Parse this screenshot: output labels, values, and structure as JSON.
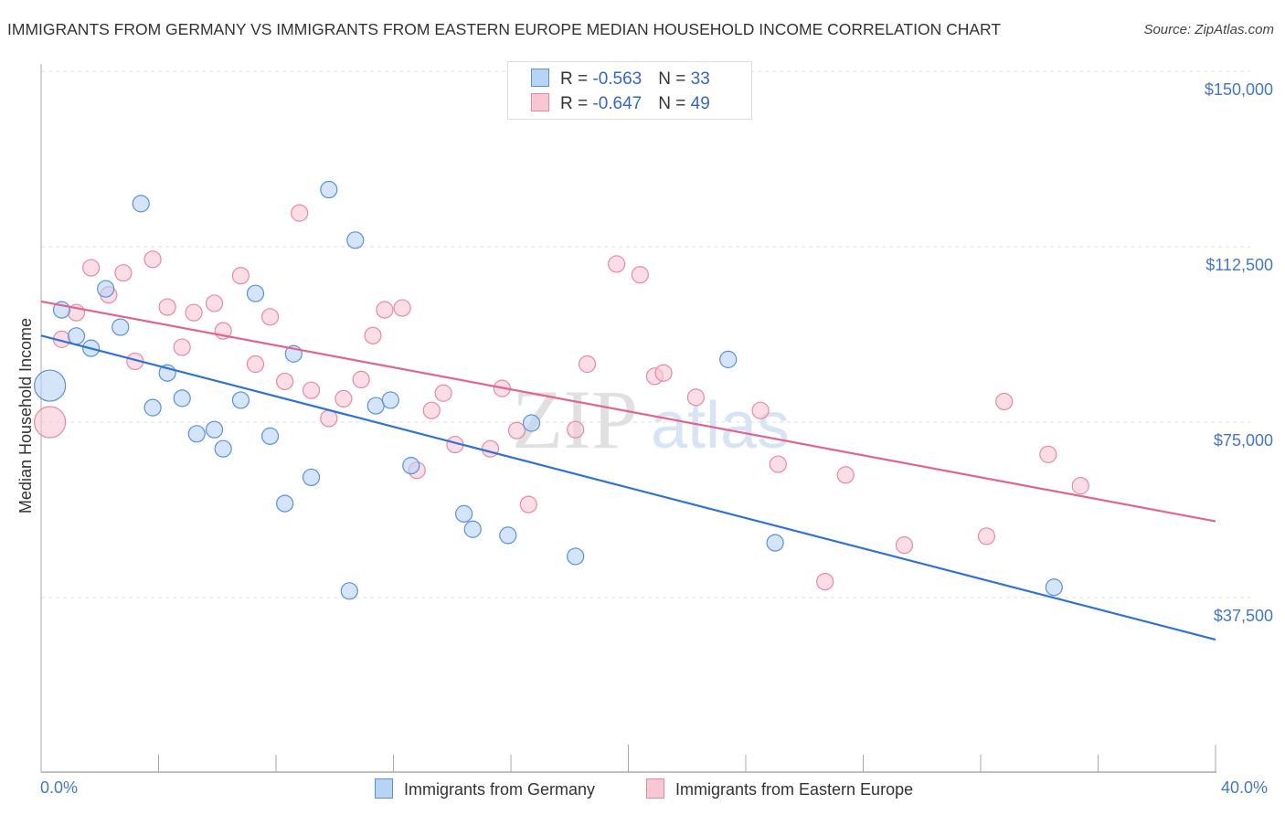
{
  "header": {
    "title": "IMMIGRANTS FROM GERMANY VS IMMIGRANTS FROM EASTERN EUROPE MEDIAN HOUSEHOLD INCOME CORRELATION CHART",
    "source": "Source: ZipAtlas.com"
  },
  "legend": {
    "rows": [
      {
        "r_label": "R = ",
        "r_value": "-0.563",
        "n_label": "N = ",
        "n_value": "33"
      },
      {
        "r_label": "R = ",
        "r_value": "-0.647",
        "n_label": "N = ",
        "n_value": "49"
      }
    ]
  },
  "watermark": {
    "zip": "ZIP",
    "atlas": "atlas"
  },
  "colors": {
    "germany_fill": "#b8d4f5",
    "germany_stroke": "#5a8fdc",
    "germany_line": "#2f72d6",
    "eeurope_fill": "#f9c6d4",
    "eeurope_stroke": "#e58aa6",
    "eeurope_line": "#e2648c",
    "tick_label": "#4477cc"
  },
  "chart_data": {
    "type": "scatter",
    "title": "IMMIGRANTS FROM GERMANY VS IMMIGRANTS FROM EASTERN EUROPE MEDIAN HOUSEHOLD INCOME CORRELATION CHART",
    "xlabel": "",
    "ylabel": "Median Household Income",
    "xlim": [
      0,
      40
    ],
    "ylim": [
      0,
      154000
    ],
    "x_tick_labels": [
      "0.0%",
      "40.0%"
    ],
    "x_ticks": [
      0,
      4,
      8,
      12,
      16,
      20,
      24,
      28,
      32,
      36,
      40
    ],
    "y_ticks": [
      37500,
      75000,
      112500,
      150000
    ],
    "y_tick_labels": [
      "$37,500",
      "$75,000",
      "$112,500",
      "$150,000"
    ],
    "grid": true,
    "legend_position": "bottom",
    "series": [
      {
        "name": "Immigrants from Germany",
        "r": -0.563,
        "n": 33,
        "trend": {
          "x": [
            0,
            40
          ],
          "y": [
            93500,
            28500
          ]
        },
        "points": [
          {
            "x": 3.4,
            "y": 121700
          },
          {
            "x": 9.8,
            "y": 124700
          },
          {
            "x": 10.7,
            "y": 113900
          },
          {
            "x": 0.7,
            "y": 99000
          },
          {
            "x": 2.2,
            "y": 103500
          },
          {
            "x": 7.3,
            "y": 102500
          },
          {
            "x": 2.7,
            "y": 95300
          },
          {
            "x": 1.2,
            "y": 93400
          },
          {
            "x": 1.7,
            "y": 90800
          },
          {
            "x": 8.6,
            "y": 89600
          },
          {
            "x": 4.3,
            "y": 85500
          },
          {
            "x": 4.8,
            "y": 80100
          },
          {
            "x": 3.8,
            "y": 78100
          },
          {
            "x": 6.8,
            "y": 79700
          },
          {
            "x": 11.4,
            "y": 78500
          },
          {
            "x": 11.9,
            "y": 79700
          },
          {
            "x": 5.3,
            "y": 72500
          },
          {
            "x": 5.9,
            "y": 73400
          },
          {
            "x": 6.2,
            "y": 69300
          },
          {
            "x": 7.8,
            "y": 72000
          },
          {
            "x": 12.6,
            "y": 65700
          },
          {
            "x": 9.2,
            "y": 63200
          },
          {
            "x": 16.7,
            "y": 74800
          },
          {
            "x": 8.3,
            "y": 57600
          },
          {
            "x": 14.4,
            "y": 55400
          },
          {
            "x": 14.7,
            "y": 52100
          },
          {
            "x": 15.9,
            "y": 50800
          },
          {
            "x": 18.2,
            "y": 46300
          },
          {
            "x": 23.4,
            "y": 88400
          },
          {
            "x": 25.0,
            "y": 49200
          },
          {
            "x": 34.5,
            "y": 39700
          },
          {
            "x": 10.5,
            "y": 38900
          },
          {
            "x": 0.3,
            "y": 82800,
            "size": "large"
          }
        ]
      },
      {
        "name": "Immigrants from Eastern Europe",
        "r": -0.647,
        "n": 49,
        "trend": {
          "x": [
            0,
            40
          ],
          "y": [
            100800,
            53800
          ]
        },
        "points": [
          {
            "x": 1.7,
            "y": 108000
          },
          {
            "x": 3.8,
            "y": 109800
          },
          {
            "x": 2.8,
            "y": 106900
          },
          {
            "x": 8.8,
            "y": 119700
          },
          {
            "x": 2.3,
            "y": 102200
          },
          {
            "x": 4.3,
            "y": 99600
          },
          {
            "x": 5.2,
            "y": 98400
          },
          {
            "x": 5.9,
            "y": 100400
          },
          {
            "x": 6.8,
            "y": 106300
          },
          {
            "x": 7.8,
            "y": 97500
          },
          {
            "x": 1.2,
            "y": 98400
          },
          {
            "x": 0.7,
            "y": 92700
          },
          {
            "x": 6.2,
            "y": 94500
          },
          {
            "x": 4.8,
            "y": 91000
          },
          {
            "x": 3.2,
            "y": 88000
          },
          {
            "x": 7.3,
            "y": 87400
          },
          {
            "x": 8.3,
            "y": 83700
          },
          {
            "x": 9.2,
            "y": 81800
          },
          {
            "x": 10.3,
            "y": 80000
          },
          {
            "x": 10.9,
            "y": 84100
          },
          {
            "x": 11.3,
            "y": 93500
          },
          {
            "x": 11.7,
            "y": 99000
          },
          {
            "x": 12.3,
            "y": 99400
          },
          {
            "x": 13.7,
            "y": 81200
          },
          {
            "x": 13.3,
            "y": 77500
          },
          {
            "x": 14.1,
            "y": 70200
          },
          {
            "x": 15.3,
            "y": 69300
          },
          {
            "x": 15.7,
            "y": 82200
          },
          {
            "x": 16.2,
            "y": 73200
          },
          {
            "x": 16.6,
            "y": 57400
          },
          {
            "x": 12.8,
            "y": 64700
          },
          {
            "x": 9.8,
            "y": 75800
          },
          {
            "x": 18.2,
            "y": 73400
          },
          {
            "x": 18.6,
            "y": 87400
          },
          {
            "x": 19.6,
            "y": 108800
          },
          {
            "x": 20.4,
            "y": 106500
          },
          {
            "x": 20.9,
            "y": 84800
          },
          {
            "x": 21.2,
            "y": 85500
          },
          {
            "x": 22.3,
            "y": 80300
          },
          {
            "x": 24.5,
            "y": 77500
          },
          {
            "x": 25.1,
            "y": 66000
          },
          {
            "x": 27.4,
            "y": 63700
          },
          {
            "x": 29.4,
            "y": 48700
          },
          {
            "x": 26.7,
            "y": 40900
          },
          {
            "x": 32.2,
            "y": 50600
          },
          {
            "x": 32.8,
            "y": 79400
          },
          {
            "x": 34.3,
            "y": 68100
          },
          {
            "x": 35.4,
            "y": 61400
          },
          {
            "x": 0.3,
            "y": 75000,
            "size": "large"
          }
        ]
      }
    ]
  }
}
